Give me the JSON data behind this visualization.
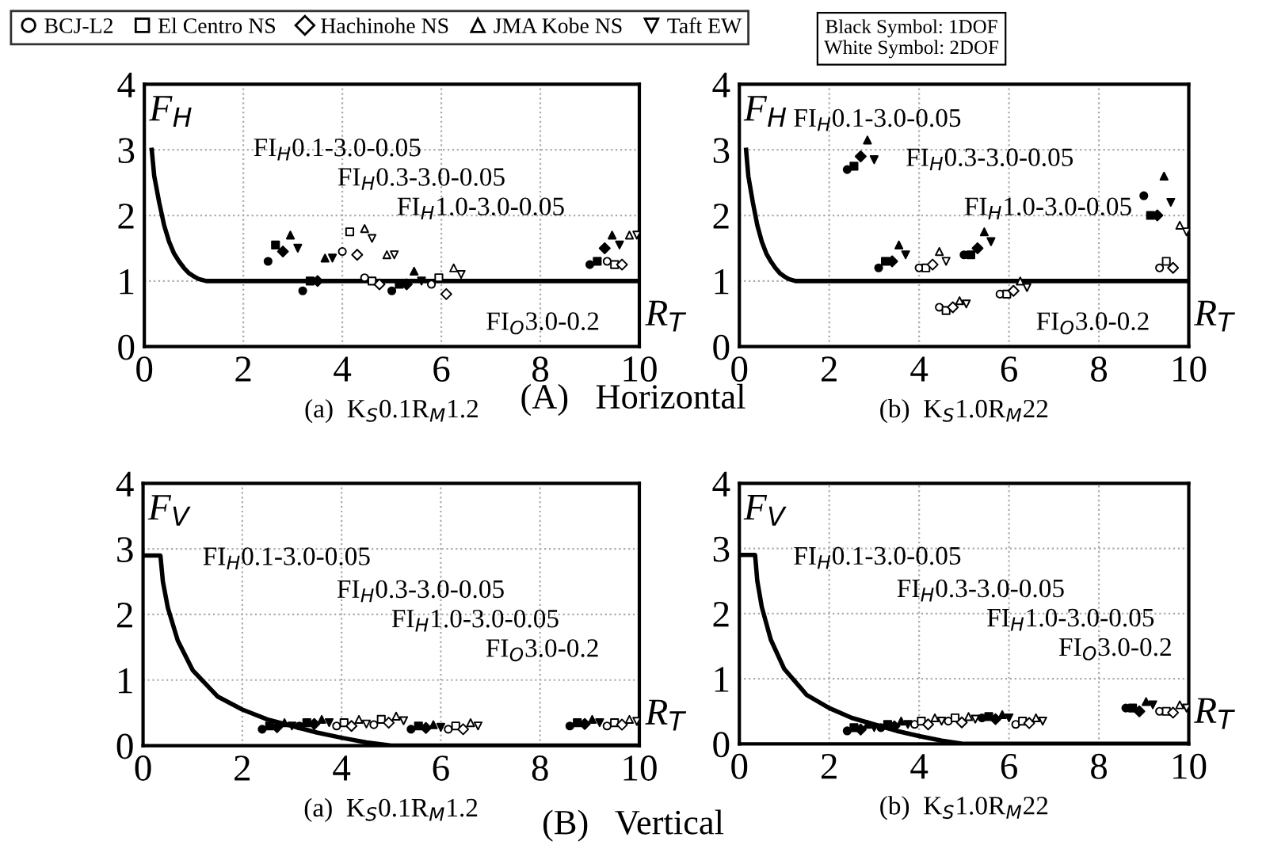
{
  "chart_data": [
    {
      "type": "scatter",
      "subtitle": "(a)  K$_{S}$0.1R$_{M}$1.2",
      "xlabel": "R$_{T}$",
      "ylabel": "F$_{H}$",
      "xlim": [
        0,
        10
      ],
      "ylim": [
        0,
        4
      ],
      "xticks": [
        0,
        2,
        4,
        6,
        8,
        10
      ],
      "yticks": [
        0,
        1,
        2,
        3,
        4
      ],
      "grid": true,
      "legend": "top",
      "annotations": [
        "FI$_{H}$0.1-3.0-0.05",
        "FI$_{H}$0.3-3.0-0.05",
        "FI$_{H}$1.0-3.0-0.05",
        "FI$_{O}$3.0-0.2",
        "(A)   Horizontal"
      ],
      "series": [
        {
          "type": "line",
          "color": "#000000",
          "marker": "none",
          "x": [
            0.15,
            0.2,
            0.3,
            0.4,
            0.5,
            0.6,
            0.7,
            0.8,
            0.9,
            1.0,
            1.1,
            1.25,
            10
          ],
          "values": [
            3.0,
            2.6,
            2.2,
            1.85,
            1.6,
            1.42,
            1.3,
            1.2,
            1.12,
            1.07,
            1.03,
            1.0,
            1.0
          ]
        },
        {
          "color": "#000000",
          "marker": "circle",
          "x": [
            2.5,
            3.2,
            5.0,
            9.0
          ],
          "values": [
            1.3,
            0.85,
            0.85,
            1.25
          ]
        },
        {
          "color": "#000000",
          "marker": "square",
          "x": [
            2.65,
            3.35,
            5.15,
            9.15
          ],
          "values": [
            1.55,
            1.0,
            0.95,
            1.3
          ]
        },
        {
          "color": "#000000",
          "marker": "diamond",
          "x": [
            2.8,
            3.5,
            5.3,
            9.3
          ],
          "values": [
            1.45,
            1.0,
            0.95,
            1.5
          ]
        },
        {
          "color": "#000000",
          "marker": "triangle",
          "x": [
            2.95,
            3.65,
            5.45,
            9.45
          ],
          "values": [
            1.7,
            1.35,
            1.15,
            1.7
          ]
        },
        {
          "color": "#000000",
          "marker": "triangle_down",
          "x": [
            3.1,
            3.8,
            5.6,
            9.6
          ],
          "values": [
            1.5,
            1.35,
            1.0,
            1.55
          ]
        },
        {
          "name": "BCJ-L2",
          "color": "#ffffff",
          "marker": "circle",
          "x": [
            4.0,
            4.45,
            5.8,
            9.35
          ],
          "values": [
            1.45,
            1.05,
            0.95,
            1.3
          ]
        },
        {
          "name": "El Centro NS",
          "color": "#ffffff",
          "marker": "square",
          "x": [
            4.15,
            4.6,
            5.95,
            9.5
          ],
          "values": [
            1.75,
            1.0,
            1.05,
            1.25
          ]
        },
        {
          "name": "Hachinohe NS",
          "color": "#ffffff",
          "marker": "diamond",
          "x": [
            4.3,
            4.75,
            6.1,
            9.65
          ],
          "values": [
            1.4,
            0.95,
            0.8,
            1.25
          ]
        },
        {
          "name": "JMA Kobe NS",
          "color": "#ffffff",
          "marker": "triangle",
          "x": [
            4.45,
            4.9,
            6.25,
            9.8
          ],
          "values": [
            1.8,
            1.4,
            1.2,
            1.7
          ]
        },
        {
          "name": "Taft EW",
          "color": "#ffffff",
          "marker": "triangle_down",
          "x": [
            4.6,
            5.05,
            6.4,
            9.95
          ],
          "values": [
            1.65,
            1.4,
            1.1,
            1.7
          ]
        }
      ]
    },
    {
      "type": "scatter",
      "subtitle": "(b)  K$_{S}$1.0R$_{M}$22",
      "xlabel": "R$_{T}$",
      "ylabel": "F$_{H}$",
      "xlim": [
        0,
        10
      ],
      "ylim": [
        0,
        4
      ],
      "xticks": [
        0,
        2,
        4,
        6,
        8,
        10
      ],
      "yticks": [
        0,
        1,
        2,
        3,
        4
      ],
      "grid": true,
      "annotations": [
        "FI$_{H}$0.1-3.0-0.05",
        "FI$_{H}$0.3-3.0-0.05",
        "FI$_{H}$1.0-3.0-0.05",
        "FI$_{O}$3.0-0.2",
        "Black Symbol: 1DOF\nWhite Symbol: 2DOF"
      ],
      "series": [
        {
          "type": "line",
          "color": "#000000",
          "marker": "none",
          "x": [
            0.15,
            0.2,
            0.3,
            0.4,
            0.5,
            0.6,
            0.7,
            0.8,
            0.9,
            1.0,
            1.1,
            1.25,
            10
          ],
          "values": [
            3.0,
            2.6,
            2.2,
            1.85,
            1.6,
            1.42,
            1.3,
            1.2,
            1.12,
            1.07,
            1.03,
            1.0,
            1.0
          ]
        },
        {
          "color": "#000000",
          "marker": "circle",
          "x": [
            2.4,
            3.1,
            5.0,
            9.0
          ],
          "values": [
            2.7,
            1.2,
            1.4,
            2.3
          ]
        },
        {
          "color": "#000000",
          "marker": "square",
          "x": [
            2.55,
            3.25,
            5.15,
            9.15
          ],
          "values": [
            2.75,
            1.3,
            1.4,
            2.0
          ]
        },
        {
          "color": "#000000",
          "marker": "diamond",
          "x": [
            2.7,
            3.4,
            5.3,
            9.3
          ],
          "values": [
            2.9,
            1.3,
            1.5,
            2.0
          ]
        },
        {
          "color": "#000000",
          "marker": "triangle",
          "x": [
            2.85,
            3.55,
            5.45,
            9.45
          ],
          "values": [
            3.15,
            1.55,
            1.75,
            2.6
          ]
        },
        {
          "color": "#000000",
          "marker": "triangle_down",
          "x": [
            3.0,
            3.7,
            5.6,
            9.6
          ],
          "values": [
            2.85,
            1.4,
            1.6,
            2.2
          ]
        },
        {
          "color": "#ffffff",
          "marker": "circle",
          "x": [
            4.0,
            4.45,
            5.8,
            9.35
          ],
          "values": [
            1.2,
            0.6,
            0.8,
            1.2
          ]
        },
        {
          "color": "#ffffff",
          "marker": "square",
          "x": [
            4.15,
            4.6,
            5.95,
            9.5
          ],
          "values": [
            1.2,
            0.55,
            0.8,
            1.3
          ]
        },
        {
          "color": "#ffffff",
          "marker": "diamond",
          "x": [
            4.3,
            4.75,
            6.1,
            9.65
          ],
          "values": [
            1.25,
            0.6,
            0.85,
            1.2
          ]
        },
        {
          "color": "#ffffff",
          "marker": "triangle",
          "x": [
            4.45,
            4.9,
            6.25,
            9.8
          ],
          "values": [
            1.45,
            0.7,
            1.0,
            1.85
          ]
        },
        {
          "color": "#ffffff",
          "marker": "triangle_down",
          "x": [
            4.6,
            5.05,
            6.4,
            9.95
          ],
          "values": [
            1.3,
            0.65,
            0.9,
            1.75
          ]
        }
      ]
    },
    {
      "type": "scatter",
      "subtitle": "(a)  K$_{S}$0.1R$_{M}$1.2",
      "xlabel": "R$_{T}$",
      "ylabel": "F$_{V}$",
      "xlim": [
        0,
        10
      ],
      "ylim": [
        0,
        4
      ],
      "xticks": [
        0,
        2,
        4,
        6,
        8,
        10
      ],
      "yticks": [
        0,
        1,
        2,
        3,
        4
      ],
      "grid": true,
      "annotations": [
        "FI$_{H}$0.1-3.0-0.05",
        "FI$_{H}$0.3-3.0-0.05",
        "FI$_{H}$1.0-3.0-0.05",
        "FI$_{O}$3.0-0.2",
        "(B)   Vertical"
      ],
      "series": [
        {
          "type": "line",
          "color": "#000000",
          "marker": "none",
          "x": [
            0.0,
            0.35,
            0.4,
            0.5,
            0.7,
            1.0,
            1.5,
            2.0,
            2.5,
            3.0,
            3.5,
            4.0,
            4.5,
            5.0,
            10
          ],
          "values": [
            2.9,
            2.9,
            2.5,
            2.1,
            1.6,
            1.15,
            0.75,
            0.55,
            0.4,
            0.3,
            0.2,
            0.12,
            0.05,
            0.0,
            0.0
          ]
        },
        {
          "color": "#000000",
          "marker": "circle",
          "x": [
            2.4,
            3.15,
            5.4,
            8.6
          ],
          "values": [
            0.25,
            0.3,
            0.25,
            0.3
          ]
        },
        {
          "color": "#000000",
          "marker": "square",
          "x": [
            2.55,
            3.3,
            5.55,
            8.75
          ],
          "values": [
            0.3,
            0.35,
            0.3,
            0.35
          ]
        },
        {
          "color": "#000000",
          "marker": "diamond",
          "x": [
            2.7,
            3.45,
            5.7,
            8.9
          ],
          "values": [
            0.28,
            0.33,
            0.27,
            0.33
          ]
        },
        {
          "color": "#000000",
          "marker": "triangle",
          "x": [
            2.85,
            3.6,
            5.85,
            9.05
          ],
          "values": [
            0.35,
            0.4,
            0.32,
            0.4
          ]
        },
        {
          "color": "#000000",
          "marker": "triangle_down",
          "x": [
            3.0,
            3.75,
            6.0,
            9.2
          ],
          "values": [
            0.3,
            0.35,
            0.28,
            0.35
          ]
        },
        {
          "color": "#ffffff",
          "marker": "circle",
          "x": [
            3.9,
            4.65,
            6.15,
            9.35
          ],
          "values": [
            0.3,
            0.32,
            0.25,
            0.3
          ]
        },
        {
          "color": "#ffffff",
          "marker": "square",
          "x": [
            4.05,
            4.8,
            6.3,
            9.5
          ],
          "values": [
            0.35,
            0.4,
            0.3,
            0.35
          ]
        },
        {
          "color": "#ffffff",
          "marker": "diamond",
          "x": [
            4.2,
            4.95,
            6.45,
            9.65
          ],
          "values": [
            0.3,
            0.35,
            0.25,
            0.32
          ]
        },
        {
          "color": "#ffffff",
          "marker": "triangle",
          "x": [
            4.35,
            5.1,
            6.6,
            9.8
          ],
          "values": [
            0.4,
            0.45,
            0.35,
            0.4
          ]
        },
        {
          "color": "#ffffff",
          "marker": "triangle_down",
          "x": [
            4.5,
            5.25,
            6.75,
            9.95
          ],
          "values": [
            0.33,
            0.38,
            0.3,
            0.37
          ]
        }
      ]
    },
    {
      "type": "scatter",
      "subtitle": "(b)  K$_{S}$1.0R$_{M}$22",
      "xlabel": "R$_{T}$",
      "ylabel": "F$_{V}$",
      "xlim": [
        0,
        10
      ],
      "ylim": [
        0,
        4
      ],
      "xticks": [
        0,
        2,
        4,
        6,
        8,
        10
      ],
      "yticks": [
        0,
        1,
        2,
        3,
        4
      ],
      "grid": true,
      "annotations": [
        "FI$_{H}$0.1-3.0-0.05",
        "FI$_{H}$0.3-3.0-0.05",
        "FI$_{H}$1.0-3.0-0.05",
        "FI$_{O}$3.0-0.2"
      ],
      "series": [
        {
          "type": "line",
          "color": "#000000",
          "marker": "none",
          "x": [
            0.0,
            0.35,
            0.4,
            0.5,
            0.7,
            1.0,
            1.5,
            2.0,
            2.5,
            3.0,
            3.5,
            4.0,
            4.5,
            5.0,
            10
          ],
          "values": [
            2.9,
            2.9,
            2.5,
            2.1,
            1.6,
            1.15,
            0.75,
            0.55,
            0.4,
            0.3,
            0.2,
            0.12,
            0.05,
            0.0,
            0.0
          ]
        },
        {
          "color": "#000000",
          "marker": "circle",
          "x": [
            2.4,
            3.15,
            5.4,
            8.6
          ],
          "values": [
            0.2,
            0.25,
            0.4,
            0.55
          ]
        },
        {
          "color": "#000000",
          "marker": "square",
          "x": [
            2.55,
            3.3,
            5.55,
            8.75
          ],
          "values": [
            0.25,
            0.3,
            0.42,
            0.55
          ]
        },
        {
          "color": "#000000",
          "marker": "diamond",
          "x": [
            2.7,
            3.45,
            5.7,
            8.9
          ],
          "values": [
            0.22,
            0.27,
            0.38,
            0.5
          ]
        },
        {
          "color": "#000000",
          "marker": "triangle",
          "x": [
            2.85,
            3.6,
            5.85,
            9.05
          ],
          "values": [
            0.3,
            0.35,
            0.45,
            0.65
          ]
        },
        {
          "color": "#000000",
          "marker": "triangle_down",
          "x": [
            3.0,
            3.75,
            6.0,
            9.2
          ],
          "values": [
            0.25,
            0.3,
            0.4,
            0.6
          ]
        },
        {
          "color": "#ffffff",
          "marker": "circle",
          "x": [
            3.9,
            4.65,
            6.15,
            9.35
          ],
          "values": [
            0.3,
            0.35,
            0.3,
            0.5
          ]
        },
        {
          "color": "#ffffff",
          "marker": "square",
          "x": [
            4.05,
            4.8,
            6.3,
            9.5
          ],
          "values": [
            0.35,
            0.4,
            0.35,
            0.5
          ]
        },
        {
          "color": "#ffffff",
          "marker": "diamond",
          "x": [
            4.2,
            4.95,
            6.45,
            9.65
          ],
          "values": [
            0.3,
            0.33,
            0.32,
            0.48
          ]
        },
        {
          "color": "#ffffff",
          "marker": "triangle",
          "x": [
            4.35,
            5.1,
            6.6,
            9.8
          ],
          "values": [
            0.4,
            0.42,
            0.4,
            0.6
          ]
        },
        {
          "color": "#ffffff",
          "marker": "triangle_down",
          "x": [
            4.5,
            5.25,
            6.75,
            9.95
          ],
          "values": [
            0.35,
            0.38,
            0.35,
            0.55
          ]
        }
      ]
    }
  ]
}
